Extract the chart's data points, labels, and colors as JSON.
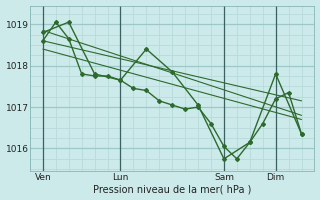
{
  "background_color": "#cdeaea",
  "grid_color_major": "#9dc8c8",
  "grid_color_minor": "#b8dada",
  "line_color": "#2d6a2d",
  "xlabel": "Pression niveau de la mer( hPa )",
  "yticks": [
    1016,
    1017,
    1018,
    1019
  ],
  "xtick_labels": [
    "Ven",
    "Lun",
    "Sam",
    "Dim"
  ],
  "xtick_positions": [
    0,
    36,
    84,
    108
  ],
  "vline_positions": [
    0,
    36,
    84,
    108
  ],
  "ylim": [
    1015.45,
    1019.45
  ],
  "xlim": [
    -6,
    126
  ],
  "series1_x": [
    0,
    6,
    12,
    18,
    24,
    30,
    36,
    42,
    48,
    54,
    60,
    66,
    72,
    78,
    84,
    90,
    96,
    102,
    108,
    114,
    120
  ],
  "series1_y": [
    1018.6,
    1019.05,
    1018.65,
    1017.8,
    1017.75,
    1017.75,
    1017.65,
    1017.45,
    1017.4,
    1017.15,
    1017.05,
    1016.95,
    1017.0,
    1016.6,
    1016.05,
    1015.75,
    1016.15,
    1016.6,
    1017.2,
    1017.35,
    1016.35
  ],
  "series2_x": [
    0,
    12,
    24,
    36,
    48,
    60,
    72,
    84,
    96,
    108,
    120
  ],
  "series2_y": [
    1018.8,
    1019.05,
    1017.8,
    1017.65,
    1018.4,
    1017.85,
    1017.05,
    1015.75,
    1016.15,
    1017.8,
    1016.35
  ],
  "trend1_x": [
    0,
    120
  ],
  "trend1_y": [
    1018.85,
    1016.8
  ],
  "trend2_x": [
    0,
    120
  ],
  "trend2_y": [
    1018.6,
    1017.15
  ],
  "trend3_x": [
    0,
    120
  ],
  "trend3_y": [
    1018.4,
    1016.7
  ]
}
